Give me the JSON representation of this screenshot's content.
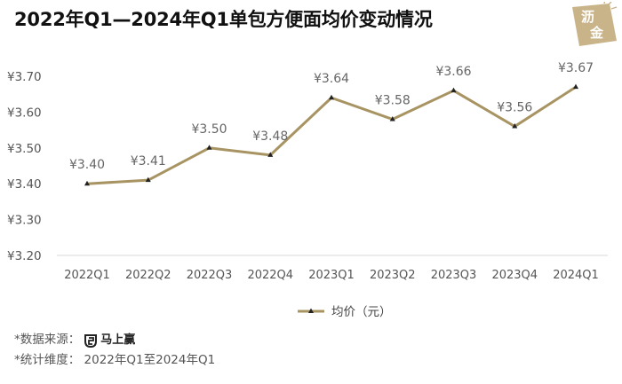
{
  "title": "2022年Q1—2024年Q1单包方便面均价变动情况",
  "logo": {
    "line1": "沥",
    "line2": "金",
    "bg_color": "#C9B48A"
  },
  "chart_data": {
    "type": "line",
    "categories": [
      "2022Q1",
      "2022Q2",
      "2022Q3",
      "2022Q4",
      "2023Q1",
      "2023Q2",
      "2023Q3",
      "2023Q4",
      "2024Q1"
    ],
    "series": [
      {
        "name": "均价（元）",
        "values": [
          3.4,
          3.41,
          3.5,
          3.48,
          3.64,
          3.58,
          3.66,
          3.56,
          3.67
        ],
        "color": "#A89462"
      }
    ],
    "data_labels": [
      "¥3.40",
      "¥3.41",
      "¥3.50",
      "¥3.48",
      "¥3.64",
      "¥3.58",
      "¥3.66",
      "¥3.56",
      "¥3.67"
    ],
    "y_ticks": [
      3.2,
      3.3,
      3.4,
      3.5,
      3.6,
      3.7
    ],
    "y_tick_labels": [
      "¥3.20",
      "¥3.30",
      "¥3.40",
      "¥3.50",
      "¥3.60",
      "¥3.70"
    ],
    "ylim": [
      3.2,
      3.7
    ],
    "grid": false,
    "legend": "bottom-center",
    "xlabel": "",
    "ylabel": ""
  },
  "footnotes": {
    "source_label": "*数据来源：",
    "source_brand": "马上赢",
    "scope": "*统计维度：  2022年Q1至2024年Q1"
  }
}
